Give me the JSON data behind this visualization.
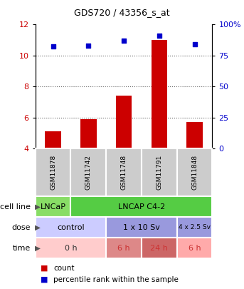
{
  "title": "GDS720 / 43356_s_at",
  "samples": [
    "GSM11878",
    "GSM11742",
    "GSM11748",
    "GSM11791",
    "GSM11848"
  ],
  "bar_values": [
    5.1,
    5.9,
    7.4,
    11.0,
    5.7
  ],
  "dot_values_pct": [
    82,
    83,
    87,
    91,
    84
  ],
  "ylim_left": [
    4,
    12
  ],
  "ylim_right": [
    0,
    100
  ],
  "yticks_left": [
    4,
    6,
    8,
    10,
    12
  ],
  "yticks_right": [
    0,
    25,
    50,
    75,
    100
  ],
  "ytick_labels_right": [
    "0",
    "25",
    "50",
    "75",
    "100%"
  ],
  "bar_color": "#cc0000",
  "dot_color": "#0000cc",
  "bar_bottom": 4,
  "cell_line_labels": [
    [
      "LNCaP",
      0,
      1
    ],
    [
      "LNCAP C4-2",
      1,
      5
    ]
  ],
  "cell_line_colors": [
    "#88dd66",
    "#55cc44"
  ],
  "dose_labels": [
    [
      "control",
      0,
      2
    ],
    [
      "1 x 10 Sv",
      2,
      4
    ],
    [
      "4 x 2.5 Sv",
      4,
      5
    ]
  ],
  "dose_colors": [
    "#ccccff",
    "#9999dd"
  ],
  "time_labels": [
    [
      "0 h",
      0,
      2
    ],
    [
      "6 h",
      2,
      3
    ],
    [
      "24 h",
      3,
      4
    ],
    [
      "6 h",
      4,
      5
    ]
  ],
  "time_colors": [
    "#ffcccc",
    "#dd8888",
    "#cc6666",
    "#ffaaaa"
  ],
  "sample_bg": "#cccccc",
  "sample_border": "#ffffff",
  "legend_count_color": "#cc0000",
  "legend_pct_color": "#0000cc",
  "grid_color": "#666666",
  "n_samples": 5
}
